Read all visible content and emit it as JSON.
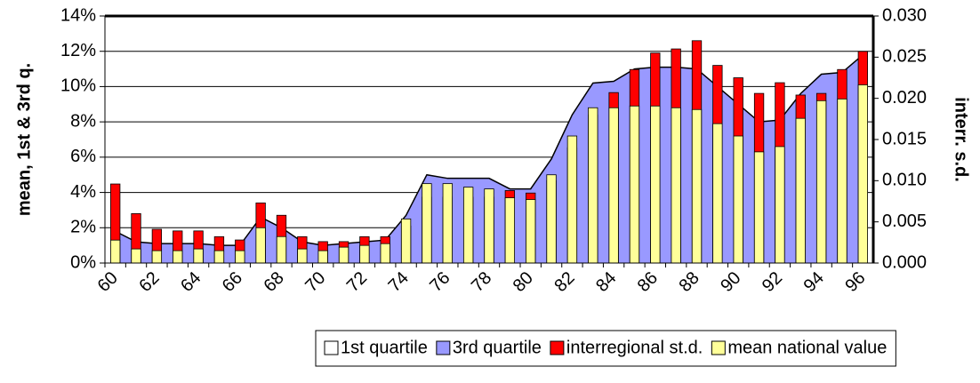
{
  "chart_data": {
    "type": "area-bar",
    "categories": [
      "60",
      null,
      "62",
      null,
      "64",
      null,
      "66",
      null,
      "68",
      null,
      "70",
      null,
      "72",
      null,
      "74",
      null,
      "76",
      null,
      "78",
      null,
      "80",
      null,
      "82",
      null,
      "84",
      null,
      "86",
      null,
      "88",
      null,
      "90",
      null,
      "92",
      null,
      "94",
      null,
      "96"
    ],
    "y_label": "mean, 1st & 3rd q.",
    "y2_label": "interr. s.d.",
    "ylim": [
      0,
      14
    ],
    "yticks": [
      {
        "value": 0,
        "label": "0%"
      },
      {
        "value": 2,
        "label": "2%"
      },
      {
        "value": 4,
        "label": "4%"
      },
      {
        "value": 6,
        "label": "6%"
      },
      {
        "value": 8,
        "label": "8%"
      },
      {
        "value": 10,
        "label": "10%"
      },
      {
        "value": 12,
        "label": "12%"
      },
      {
        "value": 14,
        "label": "14%"
      }
    ],
    "y2lim": [
      0,
      0.03
    ],
    "y2ticks": [
      {
        "value": 0,
        "label": "0.000"
      },
      {
        "value": 0.005,
        "label": "0.005"
      },
      {
        "value": 0.01,
        "label": "0.010"
      },
      {
        "value": 0.015,
        "label": "0.015"
      },
      {
        "value": 0.02,
        "label": "0.020"
      },
      {
        "value": 0.025,
        "label": "0.025"
      },
      {
        "value": 0.03,
        "label": "0.030"
      }
    ],
    "grid": true,
    "legend": "bottom",
    "series": [
      {
        "name": "1st quartile",
        "kind": "area",
        "color": "#ffffff",
        "values": [
          0.9,
          0.6,
          0.5,
          0.6,
          0.6,
          0.5,
          0.5,
          1.6,
          1.1,
          0.7,
          0.6,
          0.7,
          0.8,
          0.9,
          2.3,
          4.0,
          4.3,
          4.1,
          3.9,
          3.3,
          3.2,
          4.8,
          6.6,
          7.4,
          7.2,
          7.0,
          6.8,
          6.6,
          6.3,
          6.0,
          5.5,
          5.0,
          5.4,
          6.5,
          8.0,
          8.2,
          8.8
        ]
      },
      {
        "name": "3rd quartile",
        "kind": "area",
        "color": "#9999ff",
        "values": [
          1.8,
          1.2,
          1.1,
          1.1,
          1.1,
          1.0,
          1.0,
          2.6,
          2.0,
          1.2,
          1.0,
          1.1,
          1.2,
          1.3,
          2.7,
          5.0,
          4.8,
          4.8,
          4.8,
          4.2,
          4.2,
          5.9,
          8.4,
          10.2,
          10.3,
          11.0,
          11.1,
          11.1,
          11.0,
          10.0,
          9.0,
          8.0,
          8.1,
          9.6,
          10.7,
          10.8,
          11.8
        ]
      },
      {
        "name": "interregional st.d.",
        "kind": "bar",
        "axis": "y2",
        "color": "#ff0000",
        "values": [
          0.0096,
          0.006,
          0.0041,
          0.0039,
          0.0039,
          0.0032,
          0.0028,
          0.0073,
          0.0058,
          0.0032,
          0.0026,
          0.0026,
          0.0032,
          0.0032,
          0.0045,
          0.008,
          0.008,
          0.008,
          0.008,
          0.0088,
          0.0085,
          0.01,
          0.014,
          0.018,
          0.0207,
          0.0235,
          0.0255,
          0.026,
          0.027,
          0.024,
          0.0225,
          0.0206,
          0.0219,
          0.0204,
          0.0206,
          0.0235,
          0.0257
        ]
      },
      {
        "name": "mean national value",
        "kind": "bar",
        "color": "#ffff99",
        "values": [
          1.3,
          0.8,
          0.7,
          0.7,
          0.8,
          0.7,
          0.7,
          2.0,
          1.5,
          0.8,
          0.7,
          0.9,
          1.0,
          1.1,
          2.5,
          4.5,
          4.5,
          4.3,
          4.2,
          3.7,
          3.6,
          5.0,
          7.2,
          8.8,
          8.8,
          8.9,
          8.9,
          8.8,
          8.7,
          7.9,
          7.2,
          6.3,
          6.6,
          8.2,
          9.2,
          9.3,
          10.1
        ]
      }
    ]
  }
}
